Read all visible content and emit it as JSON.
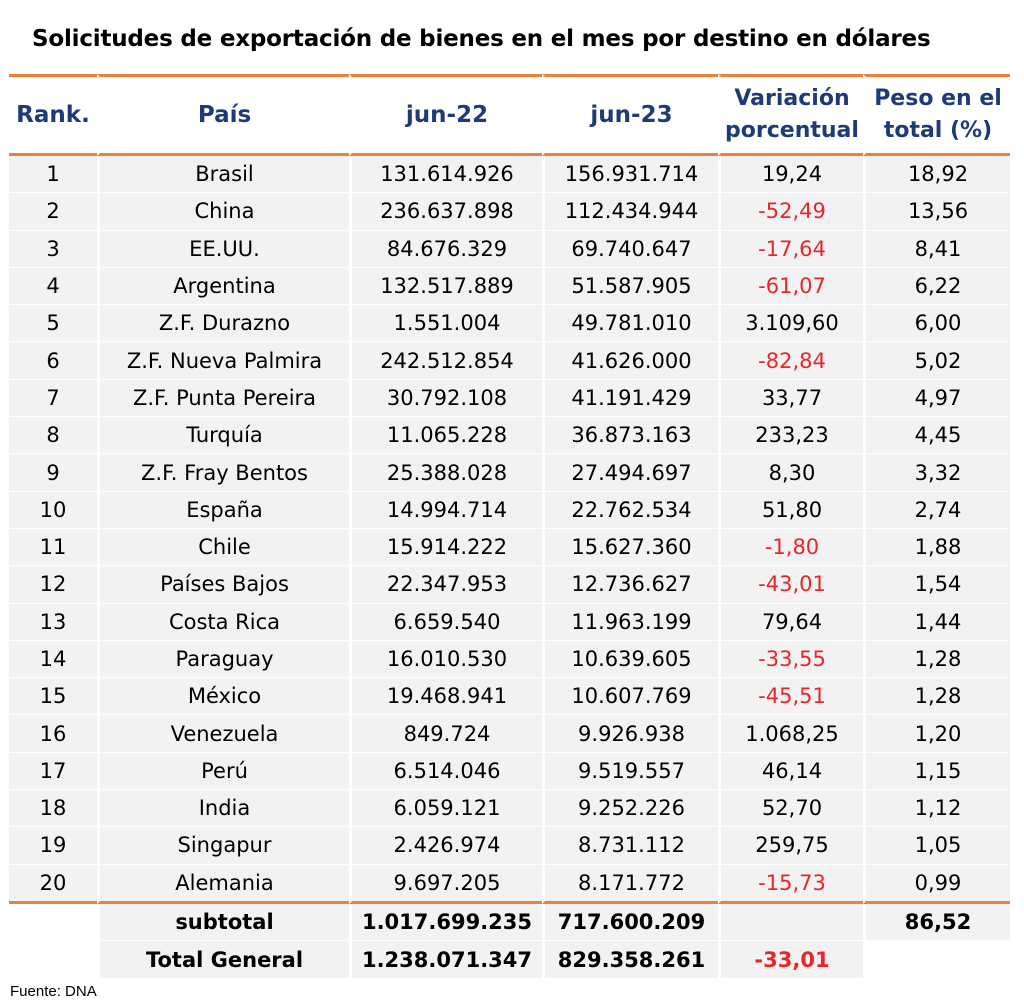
{
  "title": "Solicitudes de exportación de bienes en el mes por destino en dólares",
  "columns": {
    "rank": "Rank.",
    "pais": "País",
    "jun22": "jun-22",
    "jun23": "jun-23",
    "var_line1": "Variación",
    "var_line2": "porcentual",
    "peso_line1": "Peso en el",
    "peso_line2": "total (%)"
  },
  "rows": [
    {
      "rank": "1",
      "pais": "Brasil",
      "jun22": "131.614.926",
      "jun23": "156.931.714",
      "var": "19,24",
      "peso": "18,92"
    },
    {
      "rank": "2",
      "pais": "China",
      "jun22": "236.637.898",
      "jun23": "112.434.944",
      "var": "-52,49",
      "peso": "13,56"
    },
    {
      "rank": "3",
      "pais": "EE.UU.",
      "jun22": "84.676.329",
      "jun23": "69.740.647",
      "var": "-17,64",
      "peso": "8,41"
    },
    {
      "rank": "4",
      "pais": "Argentina",
      "jun22": "132.517.889",
      "jun23": "51.587.905",
      "var": "-61,07",
      "peso": "6,22"
    },
    {
      "rank": "5",
      "pais": "Z.F. Durazno",
      "jun22": "1.551.004",
      "jun23": "49.781.010",
      "var": "3.109,60",
      "peso": "6,00"
    },
    {
      "rank": "6",
      "pais": "Z.F. Nueva Palmira",
      "jun22": "242.512.854",
      "jun23": "41.626.000",
      "var": "-82,84",
      "peso": "5,02"
    },
    {
      "rank": "7",
      "pais": "Z.F. Punta Pereira",
      "jun22": "30.792.108",
      "jun23": "41.191.429",
      "var": "33,77",
      "peso": "4,97"
    },
    {
      "rank": "8",
      "pais": "Turquía",
      "jun22": "11.065.228",
      "jun23": "36.873.163",
      "var": "233,23",
      "peso": "4,45"
    },
    {
      "rank": "9",
      "pais": "Z.F. Fray Bentos",
      "jun22": "25.388.028",
      "jun23": "27.494.697",
      "var": "8,30",
      "peso": "3,32"
    },
    {
      "rank": "10",
      "pais": "España",
      "jun22": "14.994.714",
      "jun23": "22.762.534",
      "var": "51,80",
      "peso": "2,74"
    },
    {
      "rank": "11",
      "pais": "Chile",
      "jun22": "15.914.222",
      "jun23": "15.627.360",
      "var": "-1,80",
      "peso": "1,88"
    },
    {
      "rank": "12",
      "pais": "Países Bajos",
      "jun22": "22.347.953",
      "jun23": "12.736.627",
      "var": "-43,01",
      "peso": "1,54"
    },
    {
      "rank": "13",
      "pais": "Costa Rica",
      "jun22": "6.659.540",
      "jun23": "11.963.199",
      "var": "79,64",
      "peso": "1,44"
    },
    {
      "rank": "14",
      "pais": "Paraguay",
      "jun22": "16.010.530",
      "jun23": "10.639.605",
      "var": "-33,55",
      "peso": "1,28"
    },
    {
      "rank": "15",
      "pais": "México",
      "jun22": "19.468.941",
      "jun23": "10.607.769",
      "var": "-45,51",
      "peso": "1,28"
    },
    {
      "rank": "16",
      "pais": "Venezuela",
      "jun22": "849.724",
      "jun23": "9.926.938",
      "var": "1.068,25",
      "peso": "1,20"
    },
    {
      "rank": "17",
      "pais": "Perú",
      "jun22": "6.514.046",
      "jun23": "9.519.557",
      "var": "46,14",
      "peso": "1,15"
    },
    {
      "rank": "18",
      "pais": "India",
      "jun22": "6.059.121",
      "jun23": "9.252.226",
      "var": "52,70",
      "peso": "1,12"
    },
    {
      "rank": "19",
      "pais": "Singapur",
      "jun22": "2.426.974",
      "jun23": "8.731.112",
      "var": "259,75",
      "peso": "1,05"
    },
    {
      "rank": "20",
      "pais": "Alemania",
      "jun22": "9.697.205",
      "jun23": "8.171.772",
      "var": "-15,73",
      "peso": "0,99"
    }
  ],
  "subtotal": {
    "label": "subtotal",
    "jun22": "1.017.699.235",
    "jun23": "717.600.209",
    "var": "",
    "peso": "86,52"
  },
  "total": {
    "label": "Total General",
    "jun22": "1.238.071.347",
    "jun23": "829.358.261",
    "var": "-33,01",
    "peso": ""
  },
  "colors": {
    "header_text": "#1f3a78",
    "accent_line": "#e9823a",
    "negative": "#e8262a",
    "row_fill": "#f2f2f2"
  },
  "source": "Fuente: DNA"
}
